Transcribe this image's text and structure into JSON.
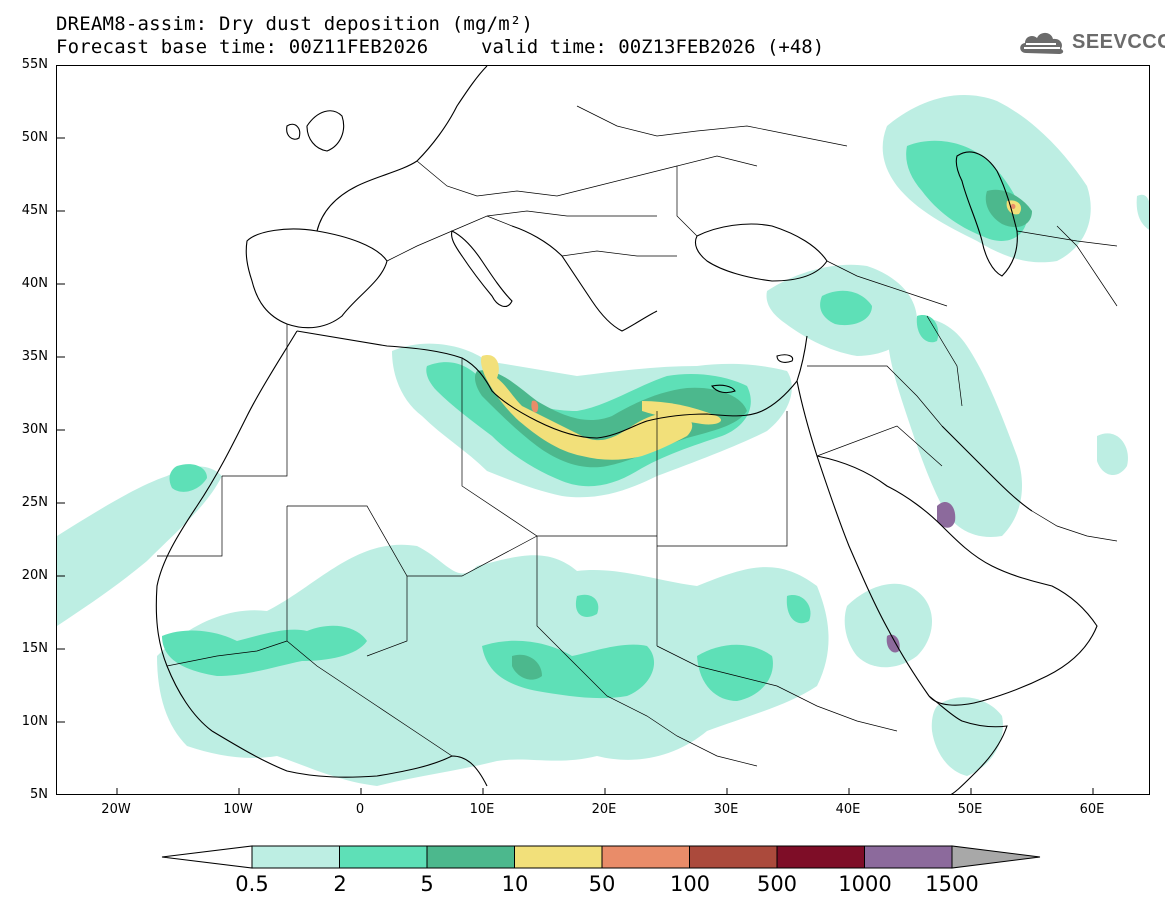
{
  "header": {
    "title_line1": "DREAM8-assim: Dry dust deposition (mg/m²)",
    "title_line2": "Forecast base time: 00Z11FEB2026",
    "valid_time": "valid time: 00Z13FEB2026 (+48)",
    "logo_text": "SEEVCCC"
  },
  "map": {
    "latitude_labels": [
      "55N",
      "50N",
      "45N",
      "40N",
      "35N",
      "30N",
      "25N",
      "20N",
      "15N",
      "10N",
      "5N"
    ],
    "longitude_labels": [
      "20W",
      "10W",
      "0",
      "10E",
      "20E",
      "30E",
      "40E",
      "50E",
      "60E"
    ]
  },
  "legend": {
    "thresholds": [
      "0.5",
      "2",
      "5",
      "10",
      "50",
      "100",
      "500",
      "1000",
      "1500"
    ],
    "colors": [
      "#bdeee3",
      "#5ee0b7",
      "#4cb88d",
      "#f2e07a",
      "#e98c69",
      "#ab4a3c",
      "#7e0d27",
      "#8c6a9c",
      "#a8a8a8"
    ],
    "under_color": "#ffffff",
    "over_color": "#a8a8a8"
  }
}
